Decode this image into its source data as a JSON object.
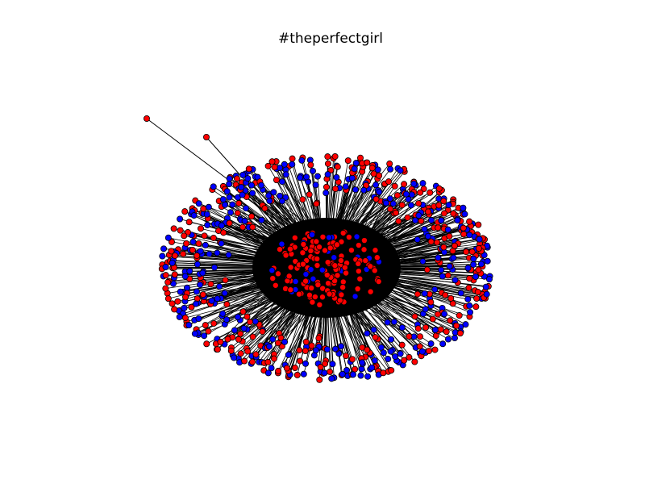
{
  "figure": {
    "title": "#theperfectgirl"
  },
  "colors": {
    "background": "#ffffff",
    "edge": "#000000",
    "node_red": "#ff0000",
    "node_blue": "#0000ff",
    "node_outline": "#000000"
  }
}
